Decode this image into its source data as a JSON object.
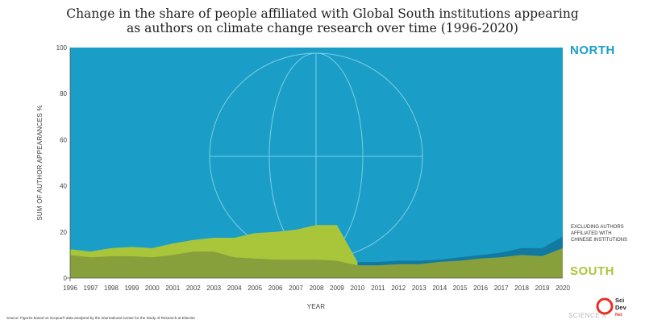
{
  "chart_data": {
    "type": "area",
    "title_lines": [
      "Change in the share of people affiliated with Global South institutions appearing",
      "as authors on climate change research over time (1996-2020)"
    ],
    "xlabel": "YEAR",
    "ylabel": "SUM OF AUTHOR APPEARANCES %",
    "ylim": [
      0,
      100
    ],
    "yticks": [
      0,
      20,
      40,
      60,
      80,
      100
    ],
    "x": [
      1996,
      1997,
      1998,
      1999,
      2000,
      2001,
      2002,
      2003,
      2004,
      2005,
      2006,
      2007,
      2008,
      2009,
      2010,
      2011,
      2012,
      2013,
      2014,
      2015,
      2016,
      2017,
      2018,
      2019,
      2020
    ],
    "series": [
      {
        "key": "south_core",
        "values": [
          10,
          9,
          9.5,
          9.5,
          9,
          10,
          11.5,
          11.5,
          9,
          8.5,
          8,
          8,
          8,
          7.5,
          5.5,
          5.5,
          6,
          6,
          7,
          7.5,
          8.5,
          9,
          10,
          9.5,
          13
        ],
        "color": "#88a03c"
      },
      {
        "key": "south_upper",
        "values": [
          12.5,
          11.5,
          13,
          13.5,
          13,
          15,
          16.5,
          17.5,
          17.5,
          19.5,
          20,
          21,
          23,
          23,
          7,
          7,
          7.5,
          7.5,
          8,
          9,
          10,
          11,
          13,
          13,
          18
        ],
        "color": "#a9c63b"
      },
      {
        "key": "north",
        "values": [
          100,
          100,
          100,
          100,
          100,
          100,
          100,
          100,
          100,
          100,
          100,
          100,
          100,
          100,
          100,
          100,
          100,
          100,
          100,
          100,
          100,
          100,
          100,
          100,
          100
        ],
        "color": "#1a9ec8"
      }
    ],
    "region_labels": {
      "north": "NORTH",
      "south": "SOUTH"
    },
    "annotation": [
      "EXCLUDING AUTHORS",
      "AFFILIATED WITH",
      "CHINESE INSTITUTIONS"
    ],
    "colors": {
      "north": "#1a9ec8",
      "south_light": "#a9c63b",
      "south_dark": "#88a03c",
      "excluding_china": "#127aa0",
      "globe_lines": "#7ecbe6"
    }
  },
  "source": "Source: Figures based on Scopus® data analysed by the International Center for the Study of Research at Elsevier",
  "watermark": "SCIENCE X",
  "logo": {
    "line1": "Sci",
    "line2": "Dev",
    "line3": "Net"
  }
}
